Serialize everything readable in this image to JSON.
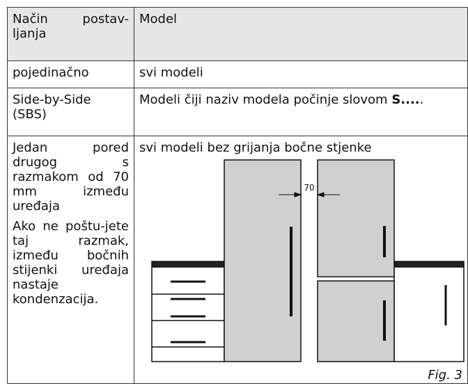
{
  "table": {
    "header": [
      "Način postav-ljanja",
      "Model"
    ],
    "rows": [
      [
        "pojedinačno",
        "svi modeli"
      ],
      [
        "Side-by-Side (SBS)",
        {
          "text": "Modeli čiji naziv modela počinje slovom",
          "bold": "S....",
          "end": "."
        }
      ],
      [
        [
          "Jedan pored drugog s razmakom od 70 mm između uređaja",
          "Ako ne poštu-jete taj razmak, između bočnih stijenki uređaja nastaje kondenzacija."
        ],
        {
          "text": "svi modeli bez grijanja bočne stjenke",
          "dimension": "70",
          "caption": "Fig. 3"
        }
      ]
    ]
  }
}
